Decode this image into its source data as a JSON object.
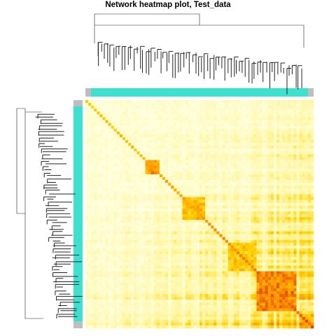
{
  "chart_data": {
    "type": "heatmap",
    "title": "Network heatmap plot, Test_data",
    "xlabel": "",
    "ylabel": "",
    "dendrograms": [
      "top",
      "left"
    ],
    "module_colors": [
      "#40e0d0",
      "#bebebe"
    ],
    "color_scale": [
      "#ffffe0",
      "#fff59a",
      "#ffd000",
      "#ff8c00",
      "#d43000"
    ],
    "diagonal": "darker",
    "blocks": [
      {
        "rows": [
          0.26,
          0.32
        ],
        "cols": [
          0.26,
          0.32
        ],
        "value": 0.78
      },
      {
        "rows": [
          0.42,
          0.52
        ],
        "cols": [
          0.42,
          0.52
        ],
        "value": 0.65
      },
      {
        "rows": [
          0.62,
          0.75
        ],
        "cols": [
          0.62,
          0.75
        ],
        "value": 0.6
      },
      {
        "rows": [
          0.75,
          0.92
        ],
        "cols": [
          0.75,
          0.92
        ],
        "value": 0.85
      },
      {
        "rows": [
          0.93,
          1.0
        ],
        "cols": [
          0.93,
          1.0
        ],
        "value": 0.7
      }
    ]
  }
}
